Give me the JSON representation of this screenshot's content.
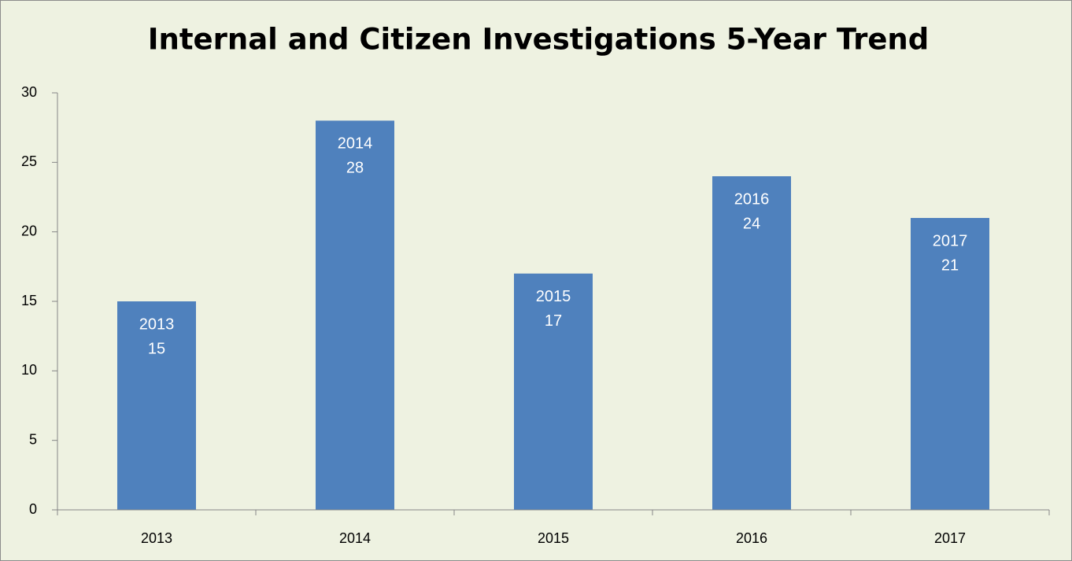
{
  "chart_data": {
    "type": "bar",
    "title": "Internal and Citizen Investigations  5-Year Trend",
    "categories": [
      "2013",
      "2014",
      "2015",
      "2016",
      "2017"
    ],
    "values": [
      15,
      28,
      17,
      24,
      21
    ],
    "color": "#4f81bd",
    "ylim": [
      0,
      30
    ],
    "yticks": [
      0,
      5,
      10,
      15,
      20,
      25,
      30
    ],
    "grid": false
  }
}
